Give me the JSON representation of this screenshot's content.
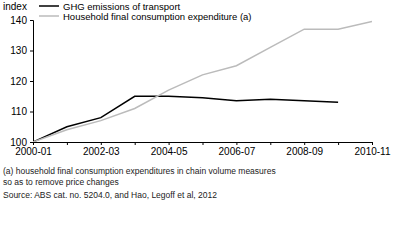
{
  "chart_data": {
    "type": "line",
    "ylabel": "index",
    "categories": [
      "2000-01",
      null,
      "2002-03",
      null,
      "2004-05",
      null,
      "2006-07",
      null,
      "2008-09",
      null,
      "2010-11"
    ],
    "series": [
      {
        "name": "GHG emissions of transport",
        "color": "#000000",
        "values": [
          100,
          105,
          108,
          115,
          115,
          114.5,
          113.5,
          114,
          113.5,
          113,
          null
        ]
      },
      {
        "name": "Household final consumption expenditure (a)",
        "color": "#bbbbbb",
        "values": [
          100,
          104,
          107,
          111,
          117,
          122,
          125,
          131,
          137,
          137,
          139.5
        ]
      }
    ],
    "ylim": [
      100,
      140
    ],
    "yticks": [
      100,
      110,
      120,
      130,
      140
    ],
    "grid": false,
    "legend": "upper left",
    "notes": [
      "(a) household final consumption expenditures in chain volume measures",
      "so as to remove price changes",
      "Source: ABS cat. no. 5204.0, and Hao, Legoff et al, 2012"
    ]
  }
}
